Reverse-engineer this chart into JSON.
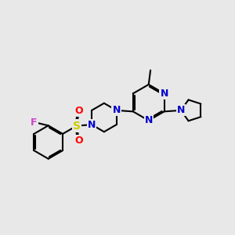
{
  "background_color": "#e8e8e8",
  "bond_color": "#000000",
  "nitrogen_color": "#0000cc",
  "fluorine_color": "#cc44cc",
  "sulfur_color": "#cccc00",
  "oxygen_color": "#ff0000",
  "line_width": 1.5,
  "figsize": [
    3.0,
    3.0
  ],
  "dpi": 100,
  "xlim": [
    0,
    10
  ],
  "ylim": [
    0,
    10
  ]
}
